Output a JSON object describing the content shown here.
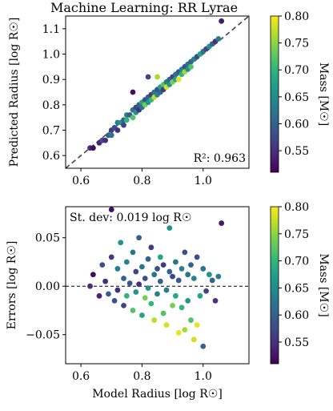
{
  "chart_data": [
    {
      "type": "scatter",
      "title": "Machine Learning: RR Lyrae",
      "xlabel": "",
      "ylabel": "Predicted Radius [log R☉]",
      "xlim": [
        0.55,
        1.15
      ],
      "ylim": [
        0.55,
        1.15
      ],
      "xticks": [
        0.6,
        0.8,
        1.0
      ],
      "xtick_labels": [
        "0.6",
        "0.8",
        "1.0"
      ],
      "yticks": [
        0.6,
        0.7,
        0.8,
        0.9,
        1.0,
        1.1
      ],
      "ytick_labels": [
        "0.6",
        "0.7",
        "0.8",
        "0.9",
        "1.0",
        "1.1"
      ],
      "annotation": "R²: 0.963",
      "reference_line": "y = x (dashed)",
      "colorbar": {
        "label": "Mass [M☉]",
        "range": [
          0.51,
          0.8
        ],
        "ticks": [
          0.55,
          0.6,
          0.65,
          0.7,
          0.75,
          0.8
        ],
        "tick_labels": [
          "0.55",
          "0.60",
          "0.65",
          "0.70",
          "0.75",
          "0.80"
        ],
        "colormap": "viridis"
      },
      "points": [
        [
          0.63,
          0.63,
          0.55
        ],
        [
          0.64,
          0.63,
          0.52
        ],
        [
          0.66,
          0.65,
          0.54
        ],
        [
          0.67,
          0.66,
          0.58
        ],
        [
          0.68,
          0.66,
          0.55
        ],
        [
          0.69,
          0.68,
          0.6
        ],
        [
          0.7,
          0.7,
          0.56
        ],
        [
          0.7,
          0.68,
          0.62
        ],
        [
          0.71,
          0.71,
          0.58
        ],
        [
          0.72,
          0.73,
          0.63
        ],
        [
          0.72,
          0.7,
          0.55
        ],
        [
          0.73,
          0.73,
          0.66
        ],
        [
          0.74,
          0.74,
          0.6
        ],
        [
          0.74,
          0.72,
          0.57
        ],
        [
          0.75,
          0.76,
          0.64
        ],
        [
          0.75,
          0.74,
          0.7
        ],
        [
          0.76,
          0.76,
          0.59
        ],
        [
          0.77,
          0.78,
          0.62
        ],
        [
          0.77,
          0.75,
          0.72
        ],
        [
          0.78,
          0.79,
          0.57
        ],
        [
          0.78,
          0.77,
          0.66
        ],
        [
          0.79,
          0.8,
          0.6
        ],
        [
          0.79,
          0.78,
          0.55
        ],
        [
          0.8,
          0.81,
          0.68
        ],
        [
          0.8,
          0.79,
          0.62
        ],
        [
          0.81,
          0.82,
          0.58
        ],
        [
          0.81,
          0.8,
          0.74
        ],
        [
          0.82,
          0.83,
          0.6
        ],
        [
          0.82,
          0.81,
          0.66
        ],
        [
          0.83,
          0.84,
          0.56
        ],
        [
          0.83,
          0.82,
          0.7
        ],
        [
          0.84,
          0.85,
          0.62
        ],
        [
          0.84,
          0.83,
          0.77
        ],
        [
          0.85,
          0.86,
          0.58
        ],
        [
          0.85,
          0.84,
          0.64
        ],
        [
          0.86,
          0.87,
          0.68
        ],
        [
          0.86,
          0.85,
          0.6
        ],
        [
          0.87,
          0.88,
          0.72
        ],
        [
          0.87,
          0.86,
          0.56
        ],
        [
          0.88,
          0.89,
          0.63
        ],
        [
          0.88,
          0.87,
          0.78
        ],
        [
          0.89,
          0.9,
          0.6
        ],
        [
          0.89,
          0.88,
          0.66
        ],
        [
          0.9,
          0.91,
          0.57
        ],
        [
          0.9,
          0.89,
          0.74
        ],
        [
          0.91,
          0.92,
          0.62
        ],
        [
          0.91,
          0.9,
          0.68
        ],
        [
          0.92,
          0.93,
          0.59
        ],
        [
          0.92,
          0.9,
          0.79
        ],
        [
          0.93,
          0.94,
          0.64
        ],
        [
          0.93,
          0.92,
          0.7
        ],
        [
          0.94,
          0.95,
          0.58
        ],
        [
          0.94,
          0.93,
          0.76
        ],
        [
          0.95,
          0.96,
          0.62
        ],
        [
          0.95,
          0.94,
          0.66
        ],
        [
          0.96,
          0.97,
          0.6
        ],
        [
          0.96,
          0.95,
          0.72
        ],
        [
          0.97,
          0.98,
          0.64
        ],
        [
          0.98,
          0.99,
          0.58
        ],
        [
          0.99,
          1.0,
          0.68
        ],
        [
          1.0,
          1.01,
          0.62
        ],
        [
          1.01,
          1.02,
          0.57
        ],
        [
          1.02,
          1.03,
          0.66
        ],
        [
          1.03,
          1.04,
          0.6
        ],
        [
          1.04,
          1.05,
          0.55
        ],
        [
          1.05,
          1.06,
          0.63
        ],
        [
          1.06,
          1.13,
          0.53
        ],
        [
          0.77,
          0.85,
          0.52
        ],
        [
          0.82,
          0.91,
          0.57
        ],
        [
          0.85,
          0.91,
          0.76
        ]
      ]
    },
    {
      "type": "scatter",
      "title": "",
      "xlabel": "Model Radius [log R☉]",
      "ylabel": "Errors [log R☉]",
      "xlim": [
        0.55,
        1.15
      ],
      "ylim": [
        -0.08,
        0.082
      ],
      "xticks": [
        0.6,
        0.8,
        1.0
      ],
      "xtick_labels": [
        "0.6",
        "0.8",
        "1.0"
      ],
      "yticks": [
        0.05,
        0.0,
        -0.05
      ],
      "ytick_labels": [
        "0.05",
        "0.00",
        "−0.05"
      ],
      "annotation": "St. dev: 0.019 log R☉",
      "reference_line": "y = 0 (dashed)",
      "colorbar": {
        "label": "Mass [M☉]",
        "range": [
          0.51,
          0.8
        ],
        "ticks": [
          0.55,
          0.6,
          0.65,
          0.7,
          0.75,
          0.8
        ],
        "tick_labels": [
          "0.55",
          "0.60",
          "0.65",
          "0.70",
          "0.75",
          "0.80"
        ],
        "colormap": "viridis"
      },
      "points": [
        [
          0.63,
          0.0,
          0.55
        ],
        [
          0.64,
          0.012,
          0.52
        ],
        [
          0.66,
          -0.01,
          0.54
        ],
        [
          0.67,
          0.022,
          0.58
        ],
        [
          0.68,
          0.005,
          0.55
        ],
        [
          0.69,
          -0.008,
          0.6
        ],
        [
          0.7,
          0.03,
          0.56
        ],
        [
          0.7,
          0.079,
          0.52
        ],
        [
          0.71,
          -0.015,
          0.58
        ],
        [
          0.72,
          0.018,
          0.63
        ],
        [
          0.72,
          -0.004,
          0.55
        ],
        [
          0.73,
          0.045,
          0.66
        ],
        [
          0.74,
          0.008,
          0.6
        ],
        [
          0.74,
          -0.02,
          0.57
        ],
        [
          0.75,
          0.025,
          0.64
        ],
        [
          0.75,
          -0.01,
          0.7
        ],
        [
          0.76,
          0.003,
          0.59
        ],
        [
          0.77,
          0.035,
          0.62
        ],
        [
          0.77,
          -0.025,
          0.72
        ],
        [
          0.78,
          0.015,
          0.57
        ],
        [
          0.78,
          -0.006,
          0.66
        ],
        [
          0.79,
          0.05,
          0.6
        ],
        [
          0.79,
          0.002,
          0.55
        ],
        [
          0.8,
          -0.03,
          0.68
        ],
        [
          0.8,
          0.02,
          0.62
        ],
        [
          0.81,
          0.008,
          0.58
        ],
        [
          0.81,
          -0.012,
          0.74
        ],
        [
          0.82,
          0.028,
          0.6
        ],
        [
          0.82,
          -0.002,
          0.66
        ],
        [
          0.83,
          0.04,
          0.56
        ],
        [
          0.83,
          -0.018,
          0.7
        ],
        [
          0.84,
          0.012,
          0.62
        ],
        [
          0.84,
          -0.035,
          0.77
        ],
        [
          0.85,
          0.018,
          0.58
        ],
        [
          0.85,
          -0.008,
          0.64
        ],
        [
          0.86,
          0.03,
          0.68
        ],
        [
          0.86,
          0.005,
          0.6
        ],
        [
          0.87,
          -0.028,
          0.72
        ],
        [
          0.87,
          0.022,
          0.56
        ],
        [
          0.88,
          -0.004,
          0.63
        ],
        [
          0.88,
          -0.04,
          0.78
        ],
        [
          0.89,
          0.015,
          0.6
        ],
        [
          0.89,
          0.06,
          0.66
        ],
        [
          0.9,
          0.01,
          0.57
        ],
        [
          0.9,
          -0.02,
          0.74
        ],
        [
          0.91,
          0.025,
          0.62
        ],
        [
          0.91,
          -0.01,
          0.68
        ],
        [
          0.92,
          0.006,
          0.59
        ],
        [
          0.92,
          -0.048,
          0.79
        ],
        [
          0.93,
          0.018,
          0.64
        ],
        [
          0.93,
          -0.022,
          0.7
        ],
        [
          0.94,
          0.035,
          0.58
        ],
        [
          0.94,
          -0.045,
          0.76
        ],
        [
          0.95,
          0.012,
          0.62
        ],
        [
          0.95,
          -0.015,
          0.66
        ],
        [
          0.96,
          0.022,
          0.6
        ],
        [
          0.96,
          -0.035,
          0.72
        ],
        [
          0.97,
          0.008,
          0.64
        ],
        [
          0.98,
          0.03,
          0.58
        ],
        [
          0.99,
          -0.01,
          0.68
        ],
        [
          1.0,
          0.018,
          0.62
        ],
        [
          1.01,
          -0.005,
          0.57
        ],
        [
          1.02,
          0.012,
          0.66
        ],
        [
          1.03,
          0.006,
          0.6
        ],
        [
          1.04,
          -0.015,
          0.55
        ],
        [
          1.05,
          0.01,
          0.63
        ],
        [
          1.06,
          0.065,
          0.53
        ],
        [
          0.97,
          -0.055,
          0.78
        ],
        [
          0.98,
          -0.04,
          0.79
        ],
        [
          1.0,
          -0.062,
          0.6
        ]
      ]
    }
  ]
}
